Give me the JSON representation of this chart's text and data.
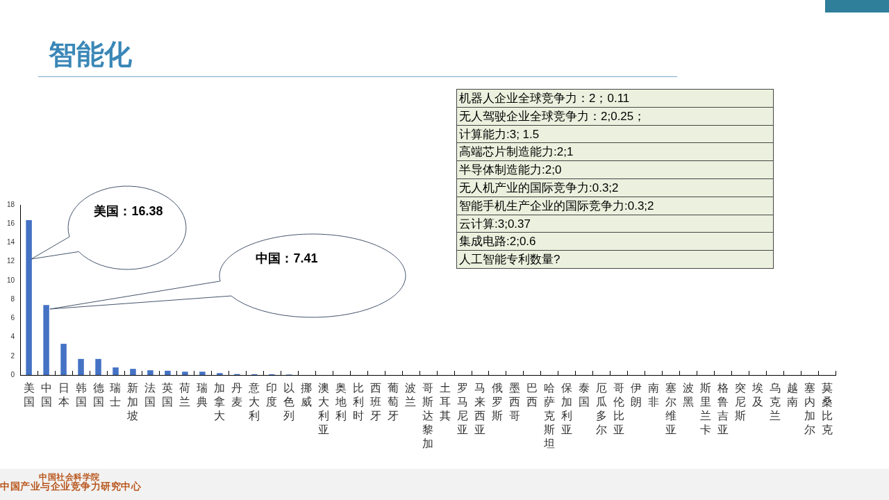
{
  "chart_data": [
    {
      "type": "bar",
      "title": "智能化",
      "categories": [
        "美国",
        "中国",
        "日本",
        "韩国",
        "德国",
        "瑞士",
        "新加坡",
        "法国",
        "英国",
        "荷兰",
        "瑞典",
        "加拿大",
        "丹麦",
        "意大利",
        "印度",
        "以色列",
        "挪威",
        "澳大利亚",
        "奥地利",
        "比利时",
        "西班牙",
        "葡萄牙",
        "波兰",
        "哥斯达黎加",
        "土耳其",
        "罗马尼亚",
        "马来西亚",
        "俄罗斯",
        "墨西哥",
        "巴西",
        "哈萨克斯坦",
        "保加利亚",
        "泰国",
        "厄瓜多尔",
        "哥伦比亚",
        "伊朗",
        "南非",
        "塞尔维亚",
        "波黑",
        "斯里兰卡",
        "格鲁吉亚",
        "突尼斯",
        "埃及",
        "乌克兰",
        "越南",
        "塞内加尔",
        "莫桑比克"
      ],
      "values": [
        16.38,
        7.41,
        3.3,
        1.7,
        1.7,
        0.8,
        0.65,
        0.5,
        0.45,
        0.35,
        0.35,
        0.2,
        0.1,
        0.08,
        0.08,
        0.05,
        0,
        0,
        0,
        0,
        0,
        0,
        0,
        0,
        0,
        0,
        0,
        0,
        0,
        0,
        0,
        0,
        0,
        0,
        0,
        0,
        0,
        0,
        0,
        0,
        0,
        0,
        0,
        0,
        0,
        0,
        0
      ],
      "color": "#4472c4",
      "ylim": [
        0,
        18
      ],
      "yticks": [
        0,
        2,
        4,
        6,
        8,
        10,
        12,
        14,
        16,
        18
      ],
      "annotations": [
        "美国：16.38",
        "中国：7.41",
        "中国社会科学院",
        "中国产业与企业竞争力研究中心"
      ]
    },
    {
      "type": "other",
      "annotations": [
        "机器人企业全球竞争力：2；0.11",
        "无人驾驶企业全球竞争力：2;0.25；",
        "计算能力:3; 1.5",
        "高端芯片制造能力:2;1",
        "半导体制造能力:2;0",
        "无人机产业的国际竞争力:0.3;2",
        "智能手机生产企业的国际竞争力:0.3;2",
        "云计算:3;0.37",
        "集成电路:2;0.6",
        "人工智能专利数量?"
      ]
    }
  ]
}
